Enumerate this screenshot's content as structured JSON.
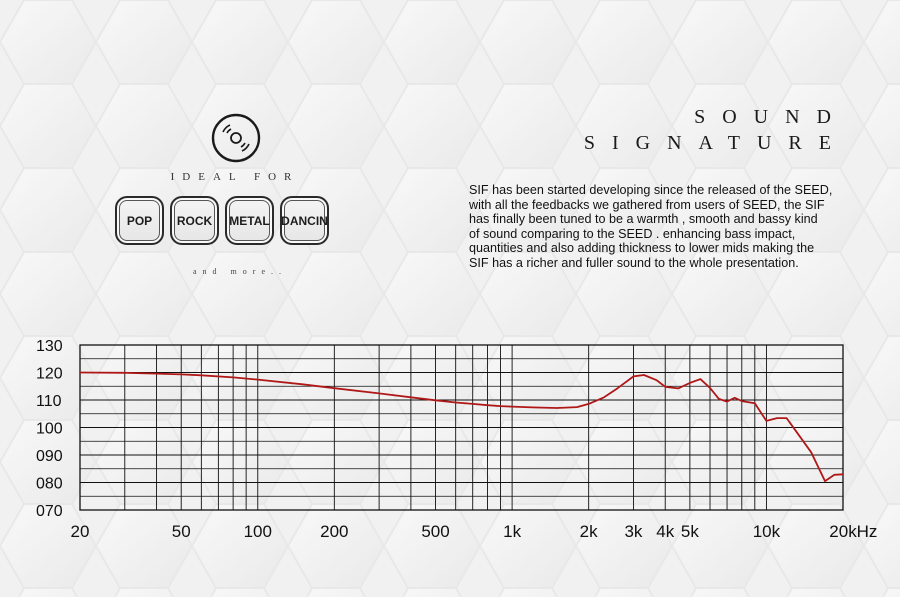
{
  "genres": [
    "POP",
    "ROCK",
    "METAL",
    "DANCIN"
  ],
  "ideal_for": "IDEAL FOR",
  "and_more": "and more..",
  "sound_signature": {
    "line1": "SOUND",
    "line2": "SIGNATURE"
  },
  "description_lines": [
    "SIF has been started developing since the released of the SEED,",
    "with all the feedbacks we gathered from users of SEED, the SIF",
    "has finally been tuned to be a warmth , smooth and bassy kind",
    "of sound comparing to the SEED . enhancing bass impact,",
    "quantities and also adding thickness to lower mids making the",
    "SIF has a richer and fuller sound to the whole presentation."
  ],
  "colors": {
    "curve": "#b01818",
    "grid": "#111111",
    "background": "#f2f2f2"
  },
  "icon": "vinyl-disc-icon",
  "chart_data": {
    "type": "line",
    "x_scale": "log",
    "xlim": [
      20,
      20000
    ],
    "ylim": [
      70,
      130
    ],
    "x_unit": "Hz",
    "y_ticks": [
      "130",
      "120",
      "110",
      "100",
      "090",
      "080",
      "070"
    ],
    "y_tick_values": [
      130,
      120,
      110,
      100,
      90,
      80,
      70
    ],
    "x_tick_labels": [
      "20",
      "50",
      "100",
      "200",
      "500",
      "1k",
      "2k",
      "3k",
      "4k",
      "5k",
      "10k",
      "20k"
    ],
    "x_tick_values": [
      20,
      50,
      100,
      200,
      500,
      1000,
      2000,
      3000,
      4000,
      5000,
      10000,
      20000
    ],
    "grid": true,
    "series": [
      {
        "x": [
          20,
          30,
          40,
          50,
          60,
          80,
          100,
          150,
          200,
          300,
          400,
          500,
          600,
          700,
          800,
          900,
          1000,
          1200,
          1500,
          1800,
          2000,
          2300,
          2600,
          3000,
          3300,
          3700,
          4000,
          4500,
          5000,
          5500,
          6000,
          6500,
          7000,
          7500,
          8000,
          9000,
          10000,
          11000,
          12000,
          13000,
          15000,
          17000,
          18500,
          20000
        ],
        "y": [
          120,
          119.9,
          119.6,
          119.3,
          119,
          118.2,
          117.4,
          115.7,
          114.3,
          112.4,
          111,
          109.9,
          109.1,
          108.6,
          108.1,
          107.8,
          107.6,
          107.3,
          107.1,
          107.4,
          108.6,
          111,
          114.3,
          118.6,
          119.1,
          117.2,
          114.8,
          114.2,
          116.2,
          117.6,
          114.4,
          110.4,
          109.4,
          110.8,
          109.6,
          108.8,
          102.4,
          103.4,
          103.4,
          99,
          91,
          80.5,
          82.8,
          83
        ]
      }
    ]
  }
}
